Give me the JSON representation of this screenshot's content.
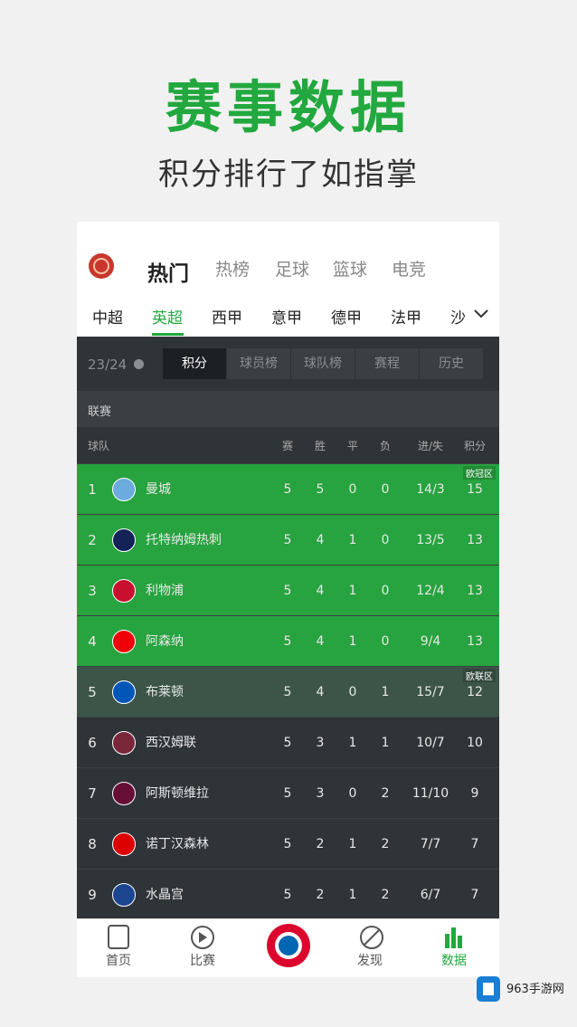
{
  "header": {
    "title": "赛事数据",
    "subtitle": "积分排行了如指掌"
  },
  "app": {
    "top_tabs": [
      "热门",
      "热榜",
      "足球",
      "篮球",
      "电竞"
    ],
    "leagues": [
      "中超",
      "英超",
      "西甲",
      "意甲",
      "德甲",
      "法甲",
      "沙"
    ],
    "season": "23/24",
    "sub_tabs": [
      "积分",
      "球员榜",
      "球队榜",
      "赛程",
      "历史"
    ],
    "section": "联赛",
    "columns": [
      "球队",
      "赛",
      "胜",
      "平",
      "负",
      "进/失",
      "积分"
    ],
    "rows": [
      {
        "rank": 1,
        "team": "曼城",
        "played": 5,
        "won": 5,
        "drawn": 0,
        "lost": 0,
        "goals": "14/3",
        "points": 15,
        "zone": "欧冠区"
      },
      {
        "rank": 2,
        "team": "托特纳姆热刺",
        "played": 5,
        "won": 4,
        "drawn": 1,
        "lost": 0,
        "goals": "13/5",
        "points": 13
      },
      {
        "rank": 3,
        "team": "利物浦",
        "played": 5,
        "won": 4,
        "drawn": 1,
        "lost": 0,
        "goals": "12/4",
        "points": 13
      },
      {
        "rank": 4,
        "team": "阿森纳",
        "played": 5,
        "won": 4,
        "drawn": 1,
        "lost": 0,
        "goals": "9/4",
        "points": 13
      },
      {
        "rank": 5,
        "team": "布莱顿",
        "played": 5,
        "won": 4,
        "drawn": 0,
        "lost": 1,
        "goals": "15/7",
        "points": 12,
        "zone": "欧联区"
      },
      {
        "rank": 6,
        "team": "西汉姆联",
        "played": 5,
        "won": 3,
        "drawn": 1,
        "lost": 1,
        "goals": "10/7",
        "points": 10
      },
      {
        "rank": 7,
        "team": "阿斯顿维拉",
        "played": 5,
        "won": 3,
        "drawn": 0,
        "lost": 2,
        "goals": "11/10",
        "points": 9
      },
      {
        "rank": 8,
        "team": "诺丁汉森林",
        "played": 5,
        "won": 2,
        "drawn": 1,
        "lost": 2,
        "goals": "7/7",
        "points": 7
      },
      {
        "rank": 9,
        "team": "水晶宫",
        "played": 5,
        "won": 2,
        "drawn": 1,
        "lost": 2,
        "goals": "6/7",
        "points": 7
      }
    ],
    "bottom_nav": [
      "首页",
      "比赛",
      "发现",
      "数据"
    ]
  },
  "watermark": "963手游网"
}
